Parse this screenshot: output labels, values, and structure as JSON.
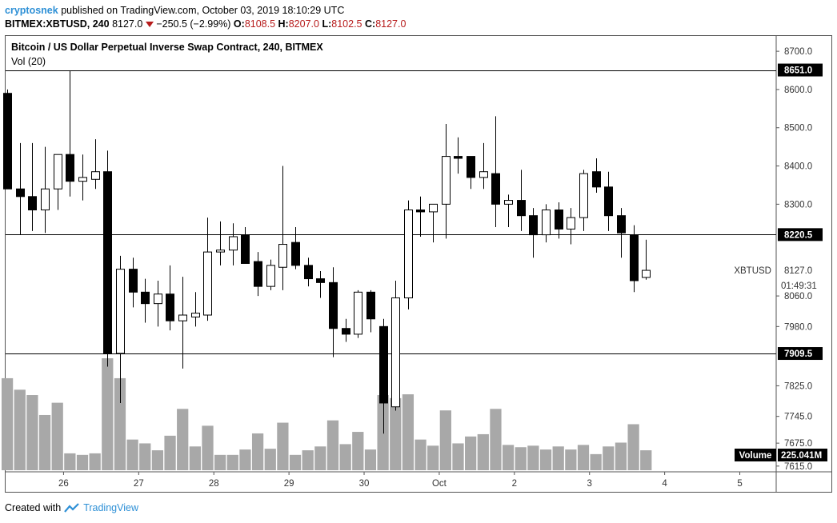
{
  "header": {
    "author": "cryptosnek",
    "published_text": "published on TradingView.com, October 03, 2019 18:10:29 UTC"
  },
  "symbol_bar": {
    "symbol": "BITMEX:XBTUSD, 240",
    "last": "8127.0",
    "change": "−250.5 (−2.99%)",
    "o_label": "O:",
    "o": "8108.5",
    "h_label": "H:",
    "h": "8207.0",
    "l_label": "L:",
    "l": "8102.5",
    "c_label": "C:",
    "c": "8127.0"
  },
  "legend": {
    "title": "Bitcoin / US Dollar Perpetual Inverse Swap Contract, 240, BITMEX",
    "volume_study": "Vol (20)"
  },
  "footer": {
    "created_with": "Created with",
    "brand": "TradingView"
  },
  "colors": {
    "up_body": "#ffffff",
    "down_body": "#000000",
    "volume": "#a8a8a8",
    "axis_text": "#333333",
    "brand": "#2e90d6",
    "change_red": "#b71c1c"
  },
  "chart_data": {
    "type": "candlestick",
    "y_axis": {
      "range": [
        7600,
        8740
      ],
      "ticks": [
        "8700.0",
        "8600.0",
        "8500.0",
        "8400.0",
        "8300.0",
        "8060.0",
        "7980.0",
        "7825.0",
        "7745.0",
        "7675.0",
        "7615.0"
      ],
      "side": "right"
    },
    "x_axis": {
      "labels": [
        {
          "label": "26",
          "bar": 4.5
        },
        {
          "label": "27",
          "bar": 10.5
        },
        {
          "label": "28",
          "bar": 16.5
        },
        {
          "label": "29",
          "bar": 22.5
        },
        {
          "label": "30",
          "bar": 28.5
        },
        {
          "label": "Oct",
          "bar": 34.5
        },
        {
          "label": "2",
          "bar": 40.5
        },
        {
          "label": "3",
          "bar": 46.5
        },
        {
          "label": "4",
          "bar": 52.5
        },
        {
          "label": "5",
          "bar": 58.5
        }
      ]
    },
    "horizontal_lines": [
      {
        "price": 8651.0,
        "label": "8651.0"
      },
      {
        "price": 8220.5,
        "label": "8220.5"
      },
      {
        "price": 7909.5,
        "label": "7909.5"
      }
    ],
    "last_price": {
      "symbol": "XBTUSD",
      "price": 8127.0,
      "label": "8127.0",
      "countdown": "01:49:31"
    },
    "volume_label": {
      "name": "Volume",
      "value": "225.041M"
    },
    "candles": [
      {
        "o": 8590,
        "h": 8600,
        "l": 8340,
        "c": 8340
      },
      {
        "o": 8340,
        "h": 8460,
        "l": 8220,
        "c": 8320
      },
      {
        "o": 8320,
        "h": 8460,
        "l": 8230,
        "c": 8285
      },
      {
        "o": 8285,
        "h": 8450,
        "l": 8225,
        "c": 8340
      },
      {
        "o": 8340,
        "h": 8430,
        "l": 8285,
        "c": 8430
      },
      {
        "o": 8430,
        "h": 8650,
        "l": 8320,
        "c": 8360
      },
      {
        "o": 8360,
        "h": 8430,
        "l": 8310,
        "c": 8370
      },
      {
        "o": 8365,
        "h": 8470,
        "l": 8340,
        "c": 8385
      },
      {
        "o": 8385,
        "h": 8440,
        "l": 7875,
        "c": 7910
      },
      {
        "o": 7910,
        "h": 8165,
        "l": 7780,
        "c": 8130
      },
      {
        "o": 8130,
        "h": 8160,
        "l": 8030,
        "c": 8070
      },
      {
        "o": 8070,
        "h": 8105,
        "l": 7990,
        "c": 8040
      },
      {
        "o": 8040,
        "h": 8100,
        "l": 7980,
        "c": 8065
      },
      {
        "o": 8065,
        "h": 8140,
        "l": 7970,
        "c": 7995
      },
      {
        "o": 7995,
        "h": 8110,
        "l": 7870,
        "c": 8010
      },
      {
        "o": 8005,
        "h": 8070,
        "l": 7980,
        "c": 8015
      },
      {
        "o": 8010,
        "h": 8265,
        "l": 7995,
        "c": 8175
      },
      {
        "o": 8175,
        "h": 8255,
        "l": 8140,
        "c": 8180
      },
      {
        "o": 8180,
        "h": 8250,
        "l": 8140,
        "c": 8215
      },
      {
        "o": 8220,
        "h": 8240,
        "l": 8155,
        "c": 8145
      },
      {
        "o": 8150,
        "h": 8175,
        "l": 8060,
        "c": 8085
      },
      {
        "o": 8085,
        "h": 8155,
        "l": 8075,
        "c": 8140
      },
      {
        "o": 8135,
        "h": 8400,
        "l": 8075,
        "c": 8195
      },
      {
        "o": 8200,
        "h": 8240,
        "l": 8130,
        "c": 8140
      },
      {
        "o": 8140,
        "h": 8160,
        "l": 8085,
        "c": 8105
      },
      {
        "o": 8105,
        "h": 8125,
        "l": 8055,
        "c": 8095
      },
      {
        "o": 8095,
        "h": 8135,
        "l": 7900,
        "c": 7975
      },
      {
        "o": 7975,
        "h": 8000,
        "l": 7940,
        "c": 7960
      },
      {
        "o": 7960,
        "h": 8075,
        "l": 7950,
        "c": 8070
      },
      {
        "o": 8070,
        "h": 8075,
        "l": 7965,
        "c": 8000
      },
      {
        "o": 7980,
        "h": 8000,
        "l": 7700,
        "c": 7780
      },
      {
        "o": 7770,
        "h": 8100,
        "l": 7760,
        "c": 8055
      },
      {
        "o": 8055,
        "h": 8310,
        "l": 8025,
        "c": 8285
      },
      {
        "o": 8285,
        "h": 8320,
        "l": 8215,
        "c": 8280
      },
      {
        "o": 8280,
        "h": 8300,
        "l": 8200,
        "c": 8300
      },
      {
        "o": 8300,
        "h": 8510,
        "l": 8210,
        "c": 8425
      },
      {
        "o": 8425,
        "h": 8475,
        "l": 8380,
        "c": 8420
      },
      {
        "o": 8425,
        "h": 8420,
        "l": 8340,
        "c": 8370
      },
      {
        "o": 8370,
        "h": 8460,
        "l": 8340,
        "c": 8385
      },
      {
        "o": 8380,
        "h": 8530,
        "l": 8240,
        "c": 8300
      },
      {
        "o": 8300,
        "h": 8325,
        "l": 8240,
        "c": 8310
      },
      {
        "o": 8310,
        "h": 8390,
        "l": 8230,
        "c": 8270
      },
      {
        "o": 8270,
        "h": 8290,
        "l": 8160,
        "c": 8220
      },
      {
        "o": 8220,
        "h": 8300,
        "l": 8200,
        "c": 8285
      },
      {
        "o": 8285,
        "h": 8305,
        "l": 8210,
        "c": 8235
      },
      {
        "o": 8235,
        "h": 8290,
        "l": 8195,
        "c": 8265
      },
      {
        "o": 8265,
        "h": 8390,
        "l": 8230,
        "c": 8380
      },
      {
        "o": 8385,
        "h": 8420,
        "l": 8330,
        "c": 8345
      },
      {
        "o": 8345,
        "h": 8385,
        "l": 8230,
        "c": 8270
      },
      {
        "o": 8270,
        "h": 8290,
        "l": 8160,
        "c": 8225
      },
      {
        "o": 8220,
        "h": 8245,
        "l": 8070,
        "c": 8100
      },
      {
        "o": 8108.5,
        "h": 8207,
        "l": 8102.5,
        "c": 8127
      }
    ],
    "volume": [
      12,
      10.5,
      9.8,
      7.2,
      8.8,
      2.2,
      2.0,
      2.2,
      14.6,
      12.0,
      4.0,
      3.5,
      2.6,
      4.5,
      8.0,
      3.1,
      5.8,
      2.0,
      2.0,
      2.7,
      4.8,
      2.8,
      6.2,
      2.0,
      2.6,
      3.1,
      6.5,
      3.4,
      5.0,
      2.7,
      9.8,
      9.4,
      9.9,
      4.0,
      3.2,
      7.8,
      3.5,
      4.4,
      4.7,
      8.0,
      3.3,
      3.0,
      3.2,
      2.7,
      3.1,
      2.7,
      3.3,
      2.1,
      3.1,
      3.6,
      6.0,
      2.6
    ]
  }
}
